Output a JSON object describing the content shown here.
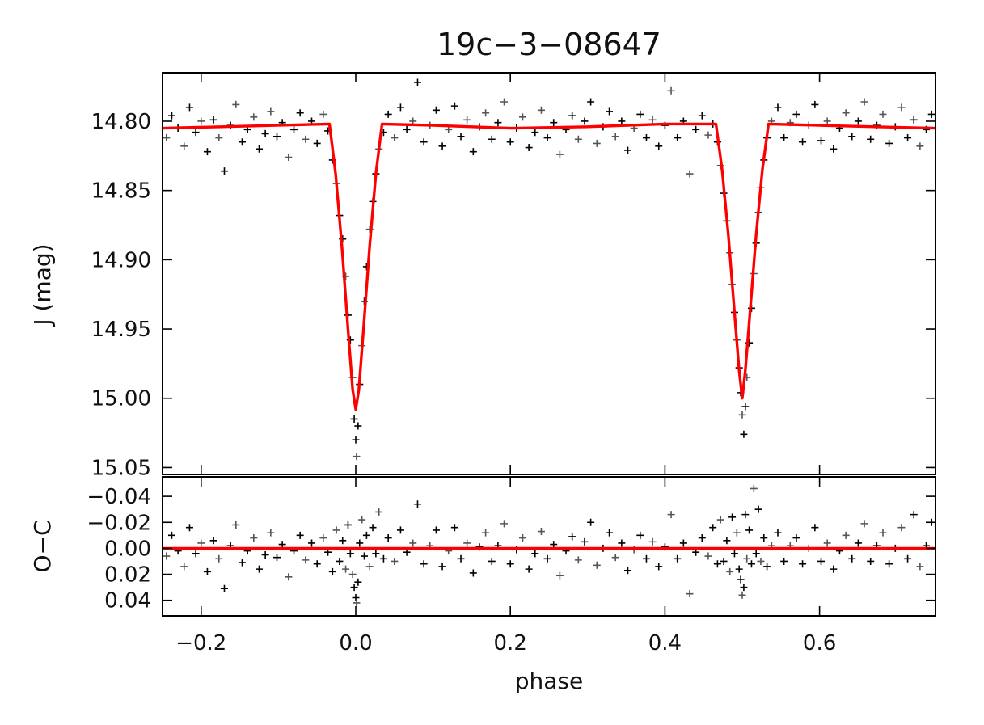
{
  "chart_data": [
    {
      "panel": "light-curve",
      "type": "scatter",
      "title": "19c−3−08647",
      "xlabel": "",
      "ylabel": "J (mag)",
      "xlim": [
        -0.25,
        0.75
      ],
      "ylim": [
        15.055,
        14.765
      ],
      "y_inverted": true,
      "x_ticks": [
        -0.2,
        0.0,
        0.2,
        0.4,
        0.6
      ],
      "y_ticks": [
        14.8,
        14.85,
        14.9,
        14.95,
        15.0,
        15.05
      ],
      "y_tick_labels": [
        "14.80",
        "14.85",
        "14.90",
        "14.95",
        "15.00",
        "15.05"
      ],
      "grid": false,
      "marker": "+",
      "point_color": "#000000",
      "model_color": "#ff0000",
      "model_curve": {
        "x": [
          -0.25,
          -0.034,
          -0.026,
          -0.018,
          -0.01,
          -0.004,
          0.0,
          0.004,
          0.01,
          0.018,
          0.026,
          0.034,
          0.1,
          0.2,
          0.3,
          0.4,
          0.466,
          0.474,
          0.482,
          0.49,
          0.496,
          0.5,
          0.504,
          0.51,
          0.518,
          0.526,
          0.534,
          0.6,
          0.75
        ],
        "y": [
          14.805,
          14.802,
          14.838,
          14.89,
          14.95,
          14.994,
          15.008,
          14.994,
          14.95,
          14.89,
          14.838,
          14.802,
          14.803,
          14.805,
          14.804,
          14.802,
          14.802,
          14.835,
          14.882,
          14.938,
          14.98,
          15.0,
          14.98,
          14.938,
          14.882,
          14.835,
          14.802,
          14.803,
          14.805
        ]
      },
      "points": [
        [
          -0.245,
          14.812
        ],
        [
          -0.238,
          14.796
        ],
        [
          -0.23,
          14.805
        ],
        [
          -0.222,
          14.818
        ],
        [
          -0.215,
          14.79
        ],
        [
          -0.207,
          14.808
        ],
        [
          -0.2,
          14.8
        ],
        [
          -0.192,
          14.822
        ],
        [
          -0.184,
          14.799
        ],
        [
          -0.177,
          14.812
        ],
        [
          -0.17,
          14.836
        ],
        [
          -0.162,
          14.803
        ],
        [
          -0.155,
          14.788
        ],
        [
          -0.147,
          14.815
        ],
        [
          -0.14,
          14.806
        ],
        [
          -0.132,
          14.797
        ],
        [
          -0.125,
          14.82
        ],
        [
          -0.117,
          14.809
        ],
        [
          -0.11,
          14.793
        ],
        [
          -0.102,
          14.811
        ],
        [
          -0.095,
          14.801
        ],
        [
          -0.087,
          14.826
        ],
        [
          -0.08,
          14.806
        ],
        [
          -0.072,
          14.794
        ],
        [
          -0.065,
          14.813
        ],
        [
          -0.057,
          14.8
        ],
        [
          -0.05,
          14.816
        ],
        [
          -0.042,
          14.795
        ],
        [
          -0.036,
          14.807
        ],
        [
          -0.03,
          14.828
        ],
        [
          -0.025,
          14.845
        ],
        [
          -0.021,
          14.868
        ],
        [
          -0.017,
          14.885
        ],
        [
          -0.013,
          14.912
        ],
        [
          -0.01,
          14.94
        ],
        [
          -0.007,
          14.958
        ],
        [
          -0.004,
          14.985
        ],
        [
          -0.002,
          15.015
        ],
        [
          0.0,
          15.03
        ],
        [
          0.001,
          15.042
        ],
        [
          0.003,
          15.02
        ],
        [
          0.005,
          14.99
        ],
        [
          0.008,
          14.962
        ],
        [
          0.011,
          14.93
        ],
        [
          0.014,
          14.905
        ],
        [
          0.018,
          14.878
        ],
        [
          0.022,
          14.858
        ],
        [
          0.026,
          14.838
        ],
        [
          0.03,
          14.82
        ],
        [
          0.036,
          14.808
        ],
        [
          0.042,
          14.795
        ],
        [
          0.05,
          14.812
        ],
        [
          0.058,
          14.79
        ],
        [
          0.066,
          14.806
        ],
        [
          0.074,
          14.8
        ],
        [
          0.08,
          14.772
        ],
        [
          0.088,
          14.815
        ],
        [
          0.096,
          14.803
        ],
        [
          0.104,
          14.792
        ],
        [
          0.112,
          14.818
        ],
        [
          0.12,
          14.806
        ],
        [
          0.128,
          14.789
        ],
        [
          0.136,
          14.811
        ],
        [
          0.144,
          14.799
        ],
        [
          0.152,
          14.822
        ],
        [
          0.16,
          14.804
        ],
        [
          0.168,
          14.794
        ],
        [
          0.176,
          14.813
        ],
        [
          0.184,
          14.801
        ],
        [
          0.192,
          14.786
        ],
        [
          0.2,
          14.815
        ],
        [
          0.208,
          14.805
        ],
        [
          0.216,
          14.797
        ],
        [
          0.224,
          14.819
        ],
        [
          0.232,
          14.808
        ],
        [
          0.24,
          14.792
        ],
        [
          0.248,
          14.812
        ],
        [
          0.256,
          14.801
        ],
        [
          0.264,
          14.824
        ],
        [
          0.272,
          14.806
        ],
        [
          0.28,
          14.796
        ],
        [
          0.288,
          14.813
        ],
        [
          0.296,
          14.8
        ],
        [
          0.304,
          14.786
        ],
        [
          0.312,
          14.816
        ],
        [
          0.32,
          14.804
        ],
        [
          0.328,
          14.793
        ],
        [
          0.336,
          14.811
        ],
        [
          0.344,
          14.8
        ],
        [
          0.352,
          14.821
        ],
        [
          0.36,
          14.805
        ],
        [
          0.368,
          14.795
        ],
        [
          0.376,
          14.812
        ],
        [
          0.384,
          14.799
        ],
        [
          0.392,
          14.818
        ],
        [
          0.4,
          14.803
        ],
        [
          0.408,
          14.778
        ],
        [
          0.416,
          14.812
        ],
        [
          0.424,
          14.8
        ],
        [
          0.432,
          14.838
        ],
        [
          0.44,
          14.806
        ],
        [
          0.448,
          14.796
        ],
        [
          0.456,
          14.81
        ],
        [
          0.462,
          14.802
        ],
        [
          0.468,
          14.815
        ],
        [
          0.472,
          14.832
        ],
        [
          0.476,
          14.852
        ],
        [
          0.48,
          14.872
        ],
        [
          0.484,
          14.895
        ],
        [
          0.487,
          14.918
        ],
        [
          0.49,
          14.938
        ],
        [
          0.493,
          14.958
        ],
        [
          0.496,
          14.978
        ],
        [
          0.498,
          14.996
        ],
        [
          0.5,
          15.012
        ],
        [
          0.502,
          15.026
        ],
        [
          0.504,
          15.006
        ],
        [
          0.506,
          14.985
        ],
        [
          0.509,
          14.96
        ],
        [
          0.512,
          14.935
        ],
        [
          0.515,
          14.91
        ],
        [
          0.518,
          14.888
        ],
        [
          0.521,
          14.866
        ],
        [
          0.524,
          14.848
        ],
        [
          0.528,
          14.828
        ],
        [
          0.532,
          14.812
        ],
        [
          0.538,
          14.8
        ],
        [
          0.546,
          14.79
        ],
        [
          0.554,
          14.812
        ],
        [
          0.562,
          14.801
        ],
        [
          0.57,
          14.795
        ],
        [
          0.578,
          14.815
        ],
        [
          0.586,
          14.803
        ],
        [
          0.594,
          14.788
        ],
        [
          0.602,
          14.814
        ],
        [
          0.61,
          14.8
        ],
        [
          0.618,
          14.82
        ],
        [
          0.626,
          14.805
        ],
        [
          0.634,
          14.794
        ],
        [
          0.642,
          14.811
        ],
        [
          0.65,
          14.8
        ],
        [
          0.658,
          14.786
        ],
        [
          0.666,
          14.813
        ],
        [
          0.674,
          14.803
        ],
        [
          0.682,
          14.795
        ],
        [
          0.69,
          14.816
        ],
        [
          0.698,
          14.804
        ],
        [
          0.706,
          14.79
        ],
        [
          0.714,
          14.812
        ],
        [
          0.722,
          14.799
        ],
        [
          0.73,
          14.818
        ],
        [
          0.738,
          14.806
        ],
        [
          0.745,
          14.795
        ]
      ]
    },
    {
      "panel": "residuals",
      "type": "scatter",
      "xlabel": "phase",
      "ylabel": "O−C",
      "xlim": [
        -0.25,
        0.75
      ],
      "ylim": [
        0.052,
        -0.055
      ],
      "y_inverted": true,
      "x_ticks": [
        -0.2,
        0.0,
        0.2,
        0.4,
        0.6
      ],
      "x_tick_labels": [
        "−0.2",
        "0.0",
        "0.2",
        "0.4",
        "0.6"
      ],
      "y_ticks": [
        -0.04,
        -0.02,
        0.0,
        0.02,
        0.04
      ],
      "y_tick_labels": [
        "−0.04",
        "−0.02",
        "0.00",
        "0.02",
        "0.04"
      ],
      "grid": false,
      "marker": "+",
      "point_color": "#000000",
      "model_color": "#ff0000",
      "model_curve": {
        "x": [
          -0.25,
          0.75
        ],
        "y": [
          0.0,
          0.0
        ]
      },
      "points": [
        [
          -0.245,
          0.006
        ],
        [
          -0.238,
          -0.01
        ],
        [
          -0.23,
          0.002
        ],
        [
          -0.222,
          0.014
        ],
        [
          -0.215,
          -0.016
        ],
        [
          -0.207,
          0.004
        ],
        [
          -0.2,
          -0.004
        ],
        [
          -0.192,
          0.018
        ],
        [
          -0.184,
          -0.006
        ],
        [
          -0.177,
          0.008
        ],
        [
          -0.17,
          0.031
        ],
        [
          -0.162,
          -0.002
        ],
        [
          -0.155,
          -0.018
        ],
        [
          -0.147,
          0.011
        ],
        [
          -0.14,
          0.002
        ],
        [
          -0.132,
          -0.008
        ],
        [
          -0.125,
          0.016
        ],
        [
          -0.117,
          0.005
        ],
        [
          -0.11,
          -0.012
        ],
        [
          -0.102,
          0.007
        ],
        [
          -0.095,
          -0.003
        ],
        [
          -0.087,
          0.022
        ],
        [
          -0.08,
          0.002
        ],
        [
          -0.072,
          -0.01
        ],
        [
          -0.065,
          0.009
        ],
        [
          -0.057,
          -0.004
        ],
        [
          -0.05,
          0.012
        ],
        [
          -0.042,
          -0.008
        ],
        [
          -0.036,
          0.003
        ],
        [
          -0.03,
          0.018
        ],
        [
          -0.025,
          -0.014
        ],
        [
          -0.021,
          0.01
        ],
        [
          -0.017,
          -0.006
        ],
        [
          -0.013,
          0.016
        ],
        [
          -0.01,
          -0.018
        ],
        [
          -0.007,
          0.004
        ],
        [
          -0.004,
          0.02
        ],
        [
          -0.002,
          0.03
        ],
        [
          0.0,
          0.038
        ],
        [
          0.001,
          0.042
        ],
        [
          0.003,
          0.026
        ],
        [
          0.005,
          -0.004
        ],
        [
          0.008,
          -0.022
        ],
        [
          0.011,
          0.006
        ],
        [
          0.014,
          -0.01
        ],
        [
          0.018,
          0.014
        ],
        [
          0.022,
          -0.016
        ],
        [
          0.026,
          0.004
        ],
        [
          0.03,
          -0.028
        ],
        [
          0.036,
          0.008
        ],
        [
          0.042,
          -0.008
        ],
        [
          0.05,
          0.01
        ],
        [
          0.058,
          -0.014
        ],
        [
          0.066,
          0.003
        ],
        [
          0.074,
          -0.004
        ],
        [
          0.08,
          -0.034
        ],
        [
          0.088,
          0.012
        ],
        [
          0.096,
          -0.002
        ],
        [
          0.104,
          -0.014
        ],
        [
          0.112,
          0.014
        ],
        [
          0.12,
          0.002
        ],
        [
          0.128,
          -0.016
        ],
        [
          0.136,
          0.008
        ],
        [
          0.144,
          -0.004
        ],
        [
          0.152,
          0.019
        ],
        [
          0.16,
          -0.001
        ],
        [
          0.168,
          -0.012
        ],
        [
          0.176,
          0.01
        ],
        [
          0.184,
          -0.002
        ],
        [
          0.192,
          -0.019
        ],
        [
          0.2,
          0.012
        ],
        [
          0.208,
          0.001
        ],
        [
          0.216,
          -0.008
        ],
        [
          0.224,
          0.016
        ],
        [
          0.232,
          0.004
        ],
        [
          0.24,
          -0.013
        ],
        [
          0.248,
          0.008
        ],
        [
          0.256,
          -0.003
        ],
        [
          0.264,
          0.021
        ],
        [
          0.272,
          0.002
        ],
        [
          0.28,
          -0.009
        ],
        [
          0.288,
          0.009
        ],
        [
          0.296,
          -0.005
        ],
        [
          0.304,
          -0.02
        ],
        [
          0.312,
          0.013
        ],
        [
          0.32,
          0.0
        ],
        [
          0.328,
          -0.012
        ],
        [
          0.336,
          0.007
        ],
        [
          0.344,
          -0.004
        ],
        [
          0.352,
          0.017
        ],
        [
          0.36,
          0.001
        ],
        [
          0.368,
          -0.01
        ],
        [
          0.376,
          0.008
        ],
        [
          0.384,
          -0.005
        ],
        [
          0.392,
          0.014
        ],
        [
          0.4,
          -0.001
        ],
        [
          0.408,
          -0.026
        ],
        [
          0.416,
          0.008
        ],
        [
          0.424,
          -0.004
        ],
        [
          0.432,
          0.035
        ],
        [
          0.44,
          0.003
        ],
        [
          0.448,
          -0.008
        ],
        [
          0.456,
          0.006
        ],
        [
          0.462,
          -0.016
        ],
        [
          0.468,
          0.012
        ],
        [
          0.472,
          -0.022
        ],
        [
          0.476,
          0.01
        ],
        [
          0.48,
          -0.006
        ],
        [
          0.484,
          0.018
        ],
        [
          0.487,
          -0.024
        ],
        [
          0.49,
          0.004
        ],
        [
          0.493,
          -0.012
        ],
        [
          0.496,
          0.016
        ],
        [
          0.498,
          0.024
        ],
        [
          0.5,
          0.036
        ],
        [
          0.502,
          0.03
        ],
        [
          0.504,
          -0.026
        ],
        [
          0.506,
          0.008
        ],
        [
          0.509,
          -0.014
        ],
        [
          0.512,
          0.012
        ],
        [
          0.515,
          -0.046
        ],
        [
          0.518,
          0.004
        ],
        [
          0.521,
          -0.03
        ],
        [
          0.524,
          0.01
        ],
        [
          0.528,
          -0.008
        ],
        [
          0.532,
          0.014
        ],
        [
          0.538,
          -0.002
        ],
        [
          0.546,
          -0.012
        ],
        [
          0.554,
          0.01
        ],
        [
          0.562,
          -0.002
        ],
        [
          0.57,
          -0.008
        ],
        [
          0.578,
          0.012
        ],
        [
          0.586,
          0.0
        ],
        [
          0.594,
          -0.016
        ],
        [
          0.602,
          0.01
        ],
        [
          0.61,
          -0.004
        ],
        [
          0.618,
          0.016
        ],
        [
          0.626,
          0.002
        ],
        [
          0.634,
          -0.01
        ],
        [
          0.642,
          0.008
        ],
        [
          0.65,
          -0.004
        ],
        [
          0.658,
          -0.019
        ],
        [
          0.666,
          0.01
        ],
        [
          0.674,
          -0.002
        ],
        [
          0.682,
          -0.012
        ],
        [
          0.69,
          0.012
        ],
        [
          0.698,
          0.0
        ],
        [
          0.706,
          -0.016
        ],
        [
          0.714,
          0.008
        ],
        [
          0.722,
          -0.026
        ],
        [
          0.73,
          0.014
        ],
        [
          0.738,
          -0.002
        ],
        [
          0.745,
          -0.02
        ]
      ]
    }
  ]
}
